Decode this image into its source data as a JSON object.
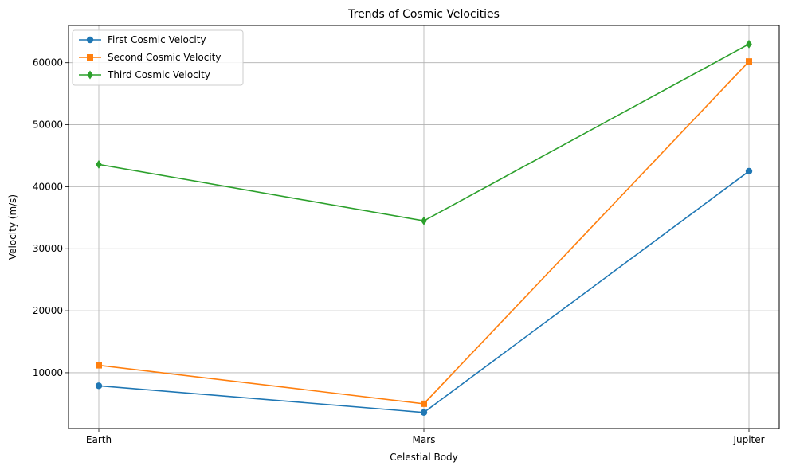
{
  "chart_data": {
    "type": "line",
    "title": "Trends of Cosmic Velocities",
    "xlabel": "Celestial Body",
    "ylabel": "Velocity (m/s)",
    "categories": [
      "Earth",
      "Mars",
      "Jupiter"
    ],
    "ylim": [
      1000,
      66000
    ],
    "yticks": [
      10000,
      20000,
      30000,
      40000,
      50000,
      60000
    ],
    "yticklabels": [
      "10000",
      "20000",
      "30000",
      "40000",
      "50000",
      "60000"
    ],
    "grid": true,
    "legend": "upper-left",
    "series": [
      {
        "name": "First Cosmic Velocity",
        "values": [
          7900,
          3600,
          42500
        ],
        "color": "#1f77b4",
        "marker": "circle"
      },
      {
        "name": "Second Cosmic Velocity",
        "values": [
          11200,
          5000,
          60200
        ],
        "color": "#ff7f0e",
        "marker": "square"
      },
      {
        "name": "Third Cosmic Velocity",
        "values": [
          43600,
          34500,
          63000
        ],
        "color": "#2ca02c",
        "marker": "diamond"
      }
    ]
  }
}
